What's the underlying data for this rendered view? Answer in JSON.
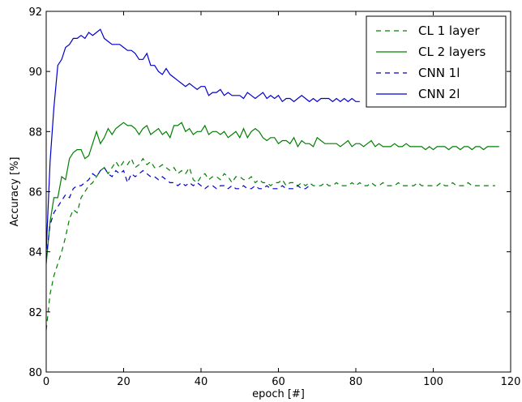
{
  "chart_data": {
    "type": "line",
    "title": "",
    "xlabel": "epoch [#]",
    "ylabel": "Accuracy [%]",
    "xlim": [
      0,
      120
    ],
    "ylim": [
      80,
      92
    ],
    "xticks": [
      0,
      20,
      40,
      60,
      80,
      100,
      120
    ],
    "yticks": [
      80,
      82,
      84,
      86,
      88,
      90,
      92
    ],
    "grid": false,
    "legend_position": "top-right",
    "series": [
      {
        "name": "CL 1 layer",
        "color": "#008000",
        "style": "dashed",
        "x": [
          0,
          1,
          2,
          3,
          4,
          5,
          6,
          7,
          8,
          9,
          10,
          11,
          12,
          13,
          14,
          15,
          16,
          17,
          18,
          19,
          20,
          21,
          22,
          23,
          24,
          25,
          26,
          27,
          28,
          29,
          30,
          31,
          32,
          33,
          34,
          35,
          36,
          37,
          38,
          39,
          40,
          41,
          42,
          43,
          44,
          45,
          46,
          47,
          48,
          49,
          50,
          51,
          52,
          53,
          54,
          55,
          56,
          57,
          58,
          59,
          60,
          61,
          62,
          63,
          64,
          65,
          66,
          67,
          68,
          69,
          70,
          71,
          72,
          73,
          74,
          75,
          76,
          77,
          78,
          79,
          80,
          81,
          82,
          83,
          84,
          85,
          86,
          87,
          88,
          89,
          90,
          91,
          92,
          93,
          94,
          95,
          96,
          97,
          98,
          99,
          100,
          101,
          102,
          103,
          104,
          105,
          106,
          107,
          108,
          109,
          110,
          111,
          112,
          113,
          114,
          115,
          116
        ],
        "y": [
          81.4,
          82.6,
          83.2,
          83.6,
          84.0,
          84.5,
          85.1,
          85.4,
          85.3,
          85.8,
          86.0,
          86.2,
          86.3,
          86.5,
          86.7,
          86.8,
          86.6,
          86.8,
          87.0,
          86.8,
          87.0,
          86.9,
          87.1,
          86.8,
          86.9,
          87.1,
          86.9,
          87.0,
          86.8,
          86.8,
          86.9,
          86.8,
          86.7,
          86.8,
          86.6,
          86.7,
          86.6,
          86.8,
          86.4,
          86.3,
          86.5,
          86.6,
          86.4,
          86.5,
          86.5,
          86.4,
          86.6,
          86.5,
          86.3,
          86.5,
          86.5,
          86.4,
          86.4,
          86.5,
          86.3,
          86.4,
          86.3,
          86.3,
          86.2,
          86.3,
          86.3,
          86.4,
          86.2,
          86.3,
          86.3,
          86.2,
          86.3,
          86.2,
          86.3,
          86.2,
          86.2,
          86.2,
          86.3,
          86.2,
          86.2,
          86.3,
          86.2,
          86.2,
          86.2,
          86.3,
          86.2,
          86.3,
          86.2,
          86.2,
          86.3,
          86.2,
          86.2,
          86.3,
          86.2,
          86.2,
          86.2,
          86.3,
          86.2,
          86.2,
          86.2,
          86.2,
          86.3,
          86.2,
          86.2,
          86.2,
          86.2,
          86.2,
          86.3,
          86.2,
          86.2,
          86.3,
          86.2,
          86.2,
          86.2,
          86.3,
          86.2,
          86.2,
          86.2,
          86.2,
          86.2,
          86.2,
          86.2
        ]
      },
      {
        "name": "CL 2 layers",
        "color": "#008000",
        "style": "solid",
        "x": [
          0,
          1,
          2,
          3,
          4,
          5,
          6,
          7,
          8,
          9,
          10,
          11,
          12,
          13,
          14,
          15,
          16,
          17,
          18,
          19,
          20,
          21,
          22,
          23,
          24,
          25,
          26,
          27,
          28,
          29,
          30,
          31,
          32,
          33,
          34,
          35,
          36,
          37,
          38,
          39,
          40,
          41,
          42,
          43,
          44,
          45,
          46,
          47,
          48,
          49,
          50,
          51,
          52,
          53,
          54,
          55,
          56,
          57,
          58,
          59,
          60,
          61,
          62,
          63,
          64,
          65,
          66,
          67,
          68,
          69,
          70,
          71,
          72,
          73,
          74,
          75,
          76,
          77,
          78,
          79,
          80,
          81,
          82,
          83,
          84,
          85,
          86,
          87,
          88,
          89,
          90,
          91,
          92,
          93,
          94,
          95,
          96,
          97,
          98,
          99,
          100,
          101,
          102,
          103,
          104,
          105,
          106,
          107,
          108,
          109,
          110,
          111,
          112,
          113,
          114,
          115,
          116,
          117
        ],
        "y": [
          83.6,
          85.0,
          85.8,
          85.8,
          86.5,
          86.4,
          87.1,
          87.3,
          87.4,
          87.4,
          87.1,
          87.2,
          87.6,
          88.0,
          87.6,
          87.8,
          88.1,
          87.9,
          88.1,
          88.2,
          88.3,
          88.2,
          88.2,
          88.1,
          87.9,
          88.1,
          88.2,
          87.9,
          88.0,
          88.1,
          87.9,
          88.0,
          87.8,
          88.2,
          88.2,
          88.3,
          88.0,
          88.1,
          87.9,
          88.0,
          88.0,
          88.2,
          87.9,
          88.0,
          88.0,
          87.9,
          88.0,
          87.8,
          87.9,
          88.0,
          87.8,
          88.1,
          87.8,
          88.0,
          88.1,
          88.0,
          87.8,
          87.7,
          87.8,
          87.8,
          87.6,
          87.7,
          87.7,
          87.6,
          87.8,
          87.5,
          87.7,
          87.6,
          87.6,
          87.5,
          87.8,
          87.7,
          87.6,
          87.6,
          87.6,
          87.6,
          87.5,
          87.6,
          87.7,
          87.5,
          87.6,
          87.6,
          87.5,
          87.6,
          87.7,
          87.5,
          87.6,
          87.5,
          87.5,
          87.5,
          87.6,
          87.5,
          87.5,
          87.6,
          87.5,
          87.5,
          87.5,
          87.5,
          87.4,
          87.5,
          87.4,
          87.5,
          87.5,
          87.5,
          87.4,
          87.5,
          87.5,
          87.4,
          87.5,
          87.5,
          87.4,
          87.5,
          87.5,
          87.4,
          87.5,
          87.5,
          87.5,
          87.5
        ]
      },
      {
        "name": "CNN 1l",
        "color": "#0000cc",
        "style": "dashed",
        "x": [
          0,
          1,
          2,
          3,
          4,
          5,
          6,
          7,
          8,
          9,
          10,
          11,
          12,
          13,
          14,
          15,
          16,
          17,
          18,
          19,
          20,
          21,
          22,
          23,
          24,
          25,
          26,
          27,
          28,
          29,
          30,
          31,
          32,
          33,
          34,
          35,
          36,
          37,
          38,
          39,
          40,
          41,
          42,
          43,
          44,
          45,
          46,
          47,
          48,
          49,
          50,
          51,
          52,
          53,
          54,
          55,
          56,
          57,
          58,
          59,
          60,
          61,
          62,
          63,
          64,
          65,
          66,
          67,
          68
        ],
        "y": [
          83.8,
          84.9,
          85.3,
          85.5,
          85.7,
          85.9,
          85.8,
          86.1,
          86.2,
          86.2,
          86.3,
          86.4,
          86.6,
          86.5,
          86.7,
          86.8,
          86.6,
          86.5,
          86.7,
          86.6,
          86.7,
          86.3,
          86.6,
          86.5,
          86.6,
          86.7,
          86.6,
          86.5,
          86.5,
          86.4,
          86.5,
          86.4,
          86.3,
          86.3,
          86.2,
          86.3,
          86.2,
          86.3,
          86.2,
          86.3,
          86.2,
          86.1,
          86.2,
          86.2,
          86.1,
          86.2,
          86.2,
          86.1,
          86.2,
          86.1,
          86.1,
          86.2,
          86.1,
          86.1,
          86.2,
          86.1,
          86.1,
          86.2,
          86.1,
          86.1,
          86.1,
          86.2,
          86.1,
          86.1,
          86.1,
          86.2,
          86.1,
          86.1,
          86.2
        ]
      },
      {
        "name": "CNN 2l",
        "color": "#0000cc",
        "style": "solid",
        "x": [
          0,
          1,
          2,
          3,
          4,
          5,
          6,
          7,
          8,
          9,
          10,
          11,
          12,
          13,
          14,
          15,
          16,
          17,
          18,
          19,
          20,
          21,
          22,
          23,
          24,
          25,
          26,
          27,
          28,
          29,
          30,
          31,
          32,
          33,
          34,
          35,
          36,
          37,
          38,
          39,
          40,
          41,
          42,
          43,
          44,
          45,
          46,
          47,
          48,
          49,
          50,
          51,
          52,
          53,
          54,
          55,
          56,
          57,
          58,
          59,
          60,
          61,
          62,
          63,
          64,
          65,
          66,
          67,
          68,
          69,
          70,
          71,
          72,
          73,
          74,
          75,
          76,
          77,
          78,
          79,
          80,
          81
        ],
        "y": [
          84.0,
          87.0,
          88.8,
          90.2,
          90.4,
          90.8,
          90.9,
          91.1,
          91.1,
          91.2,
          91.1,
          91.3,
          91.2,
          91.3,
          91.4,
          91.1,
          91.0,
          90.9,
          90.9,
          90.9,
          90.8,
          90.7,
          90.7,
          90.6,
          90.4,
          90.4,
          90.6,
          90.2,
          90.2,
          90.0,
          89.9,
          90.1,
          89.9,
          89.8,
          89.7,
          89.6,
          89.5,
          89.6,
          89.5,
          89.4,
          89.5,
          89.5,
          89.2,
          89.3,
          89.3,
          89.4,
          89.2,
          89.3,
          89.2,
          89.2,
          89.2,
          89.1,
          89.3,
          89.2,
          89.1,
          89.2,
          89.3,
          89.1,
          89.2,
          89.1,
          89.2,
          89.0,
          89.1,
          89.1,
          89.0,
          89.1,
          89.2,
          89.1,
          89.0,
          89.1,
          89.0,
          89.1,
          89.1,
          89.1,
          89.0,
          89.1,
          89.0,
          89.1,
          89.0,
          89.1,
          89.0,
          89.0
        ]
      }
    ]
  }
}
